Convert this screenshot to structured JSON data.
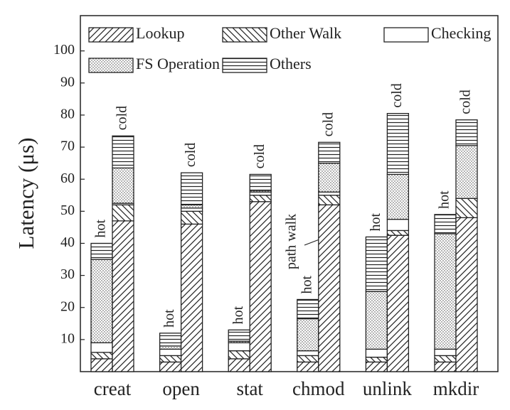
{
  "chart_data": {
    "type": "grouped-stacked-bar",
    "y_label": "Latency (μs)",
    "categories": [
      "creat",
      "open",
      "stat",
      "chmod",
      "unlink",
      "mkdir"
    ],
    "groups": [
      "hot",
      "cold"
    ],
    "series": [
      {
        "name": "Lookup",
        "pattern": "diagonal-up",
        "color": "#222",
        "values": [
          [
            4,
            47
          ],
          [
            3,
            46
          ],
          [
            4,
            53
          ],
          [
            3,
            52
          ],
          [
            3,
            42.5
          ],
          [
            3,
            48
          ]
        ]
      },
      {
        "name": "Other Walk",
        "pattern": "diagonal-down",
        "color": "#222",
        "values": [
          [
            2,
            5
          ],
          [
            2,
            4
          ],
          [
            2.5,
            2
          ],
          [
            2,
            3
          ],
          [
            1.5,
            1.5
          ],
          [
            2,
            6
          ]
        ]
      },
      {
        "name": "Checking",
        "pattern": "blank",
        "color": "#222",
        "values": [
          [
            3,
            0.5
          ],
          [
            2,
            1
          ],
          [
            2.5,
            1
          ],
          [
            1.5,
            1
          ],
          [
            2.5,
            3.5
          ],
          [
            2,
            0
          ]
        ]
      },
      {
        "name": "FS Operation",
        "pattern": "dots",
        "color": "#222",
        "values": [
          [
            26,
            11
          ],
          [
            1,
            1
          ],
          [
            0.5,
            0.5
          ],
          [
            10,
            9
          ],
          [
            18,
            14
          ],
          [
            36,
            16.5
          ]
        ]
      },
      {
        "name": "Others",
        "pattern": "horizontal",
        "color": "#222",
        "values": [
          [
            5,
            10
          ],
          [
            4,
            10
          ],
          [
            3.5,
            5
          ],
          [
            6,
            6.5
          ],
          [
            17,
            19
          ],
          [
            6,
            8
          ]
        ]
      }
    ],
    "annotations": [
      {
        "text": "path walk"
      }
    ],
    "ylim": [
      0,
      111
    ],
    "yticks": [
      10,
      20,
      30,
      40,
      50,
      60,
      70,
      80,
      90,
      100
    ],
    "grid": false
  }
}
